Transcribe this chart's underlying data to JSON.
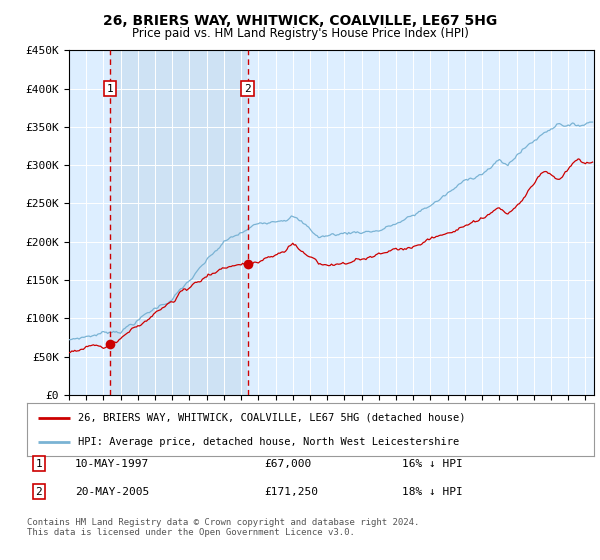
{
  "title": "26, BRIERS WAY, WHITWICK, COALVILLE, LE67 5HG",
  "subtitle": "Price paid vs. HM Land Registry's House Price Index (HPI)",
  "legend_line1": "26, BRIERS WAY, WHITWICK, COALVILLE, LE67 5HG (detached house)",
  "legend_line2": "HPI: Average price, detached house, North West Leicestershire",
  "footnote": "Contains HM Land Registry data © Crown copyright and database right 2024.\nThis data is licensed under the Open Government Licence v3.0.",
  "sale1_date": "10-MAY-1997",
  "sale1_price": "£67,000",
  "sale1_hpi": "16% ↓ HPI",
  "sale2_date": "20-MAY-2005",
  "sale2_price": "£171,250",
  "sale2_hpi": "18% ↓ HPI",
  "sale1_year": 1997.37,
  "sale1_value": 67000,
  "sale2_year": 2005.37,
  "sale2_value": 171250,
  "ylim": [
    0,
    450000
  ],
  "xlim_start": 1995,
  "xlim_end": 2025.5,
  "hpi_color": "#7ab3d4",
  "price_color": "#cc0000",
  "sale_marker_color": "#cc0000",
  "plot_bg_color": "#ddeeff",
  "shade_color": "#cce0f0",
  "grid_color": "#ffffff",
  "vline_color": "#cc0000",
  "box_edge_color": "#cc0000",
  "title_fontsize": 10,
  "subtitle_fontsize": 9
}
